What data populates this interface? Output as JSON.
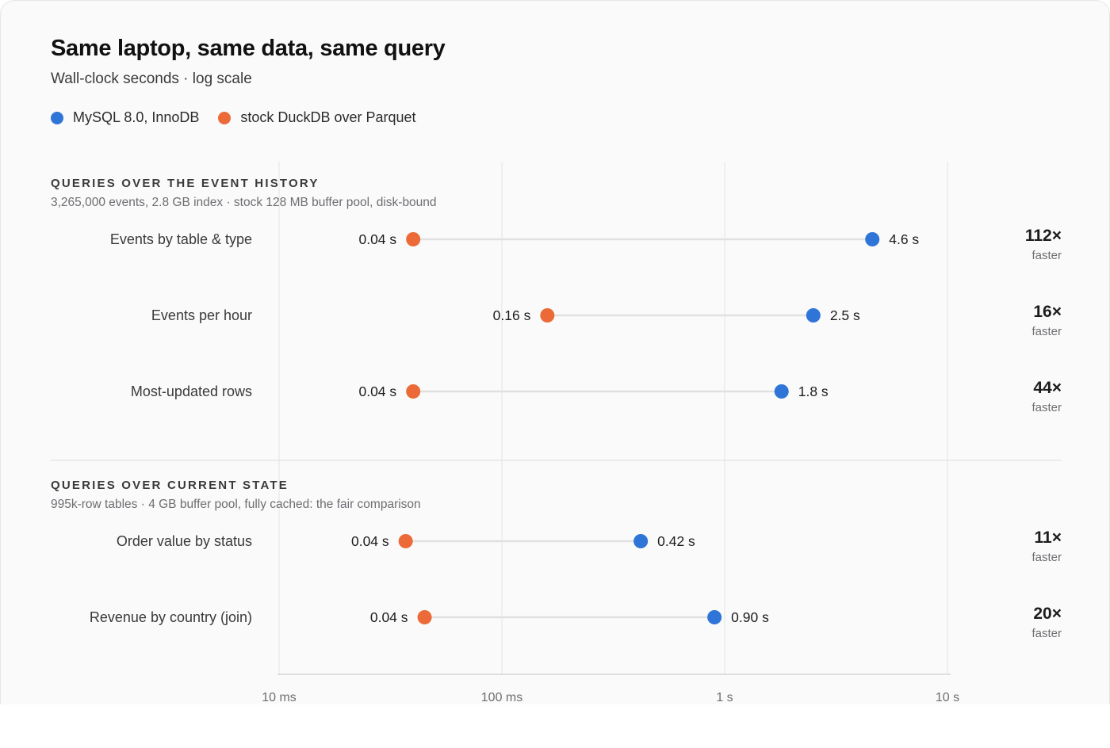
{
  "header": {
    "title": "Same laptop, same data, same query",
    "subtitle": "Wall-clock seconds · log scale"
  },
  "legend": [
    {
      "label": "MySQL 8.0, InnoDB",
      "color": "#2f74d7"
    },
    {
      "label": "stock DuckDB over Parquet",
      "color": "#ec6a37"
    }
  ],
  "chart_data": {
    "type": "scatter",
    "style": "dumbbell",
    "title": "Same laptop, same data, same query",
    "subtitle": "Wall-clock seconds · log scale",
    "x_scale": "log",
    "x_unit": "s",
    "xlim": [
      0.01,
      10
    ],
    "x_ticks": [
      {
        "value": 0.01,
        "label": "10 ms"
      },
      {
        "value": 0.1,
        "label": "100 ms"
      },
      {
        "value": 1,
        "label": "1 s"
      },
      {
        "value": 10,
        "label": "10 s"
      }
    ],
    "grid": true,
    "legend_position": "top-left",
    "series": [
      {
        "name": "MySQL 8.0, InnoDB",
        "key": "mysql",
        "color": "#2f74d7"
      },
      {
        "name": "stock DuckDB over Parquet",
        "key": "duckdb",
        "color": "#ec6a37"
      }
    ],
    "sections": [
      {
        "heading": "QUERIES OVER THE EVENT HISTORY",
        "note": "3,265,000 events, 2.8 GB index · stock 128 MB buffer pool, disk-bound",
        "rows": [
          {
            "label": "Events by table & type",
            "duckdb": 0.04,
            "duckdb_label": "0.04 s",
            "mysql": 4.6,
            "mysql_label": "4.6 s",
            "ratio": "112×",
            "ratio_note": "faster"
          },
          {
            "label": "Events per hour",
            "duckdb": 0.16,
            "duckdb_label": "0.16 s",
            "mysql": 2.5,
            "mysql_label": "2.5 s",
            "ratio": "16×",
            "ratio_note": "faster"
          },
          {
            "label": "Most-updated rows",
            "duckdb": 0.04,
            "duckdb_label": "0.04 s",
            "mysql": 1.8,
            "mysql_label": "1.8 s",
            "ratio": "44×",
            "ratio_note": "faster"
          }
        ]
      },
      {
        "heading": "QUERIES OVER CURRENT STATE",
        "note": "995k-row tables · 4 GB buffer pool, fully cached: the fair comparison",
        "rows": [
          {
            "label": "Order value by status",
            "duckdb": 0.037,
            "duckdb_label": "0.04 s",
            "mysql": 0.42,
            "mysql_label": "0.42 s",
            "ratio": "11×",
            "ratio_note": "faster"
          },
          {
            "label": "Revenue by country (join)",
            "duckdb": 0.045,
            "duckdb_label": "0.04 s",
            "mysql": 0.9,
            "mysql_label": "0.90 s",
            "ratio": "20×",
            "ratio_note": "faster"
          }
        ]
      }
    ]
  }
}
